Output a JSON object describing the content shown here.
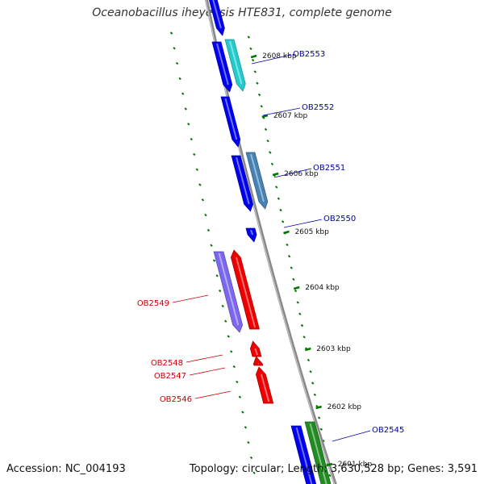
{
  "title": "Oceanobacillus iheyensis HTE831, complete genome",
  "footer": {
    "accession": "Accession: NC_004193",
    "stats": "Topology: circular; Length: 3,630,528 bp; Genes: 3,591"
  },
  "colors": {
    "backbone": "#888888",
    "tick": "#007700",
    "forward_label": "#0000aa",
    "reverse_label": "#cc0000"
  },
  "ticks": [
    "2608 kbp",
    "2607 kbp",
    "2606 kbp",
    "2605 kbp",
    "2604 kbp",
    "2603 kbp",
    "2602 kbp",
    "2601 kbp"
  ],
  "genes_forward": [
    {
      "name": "OB2553",
      "color": "#22cccc"
    },
    {
      "name": "OB2552",
      "color": "#0000ee"
    },
    {
      "name": "OB2551",
      "color": "#4682b4"
    },
    {
      "name": "OB2550",
      "color": "#0000ee"
    },
    {
      "name": "OB2545",
      "color": "#228b22"
    }
  ],
  "genes_reverse": [
    {
      "name": "OB2549",
      "color": "#7b68ee"
    },
    {
      "name": "OB2548",
      "color": "#ee0000"
    },
    {
      "name": "OB2547",
      "color": "#ee0000"
    },
    {
      "name": "OB2546",
      "color": "#ee0000"
    }
  ]
}
